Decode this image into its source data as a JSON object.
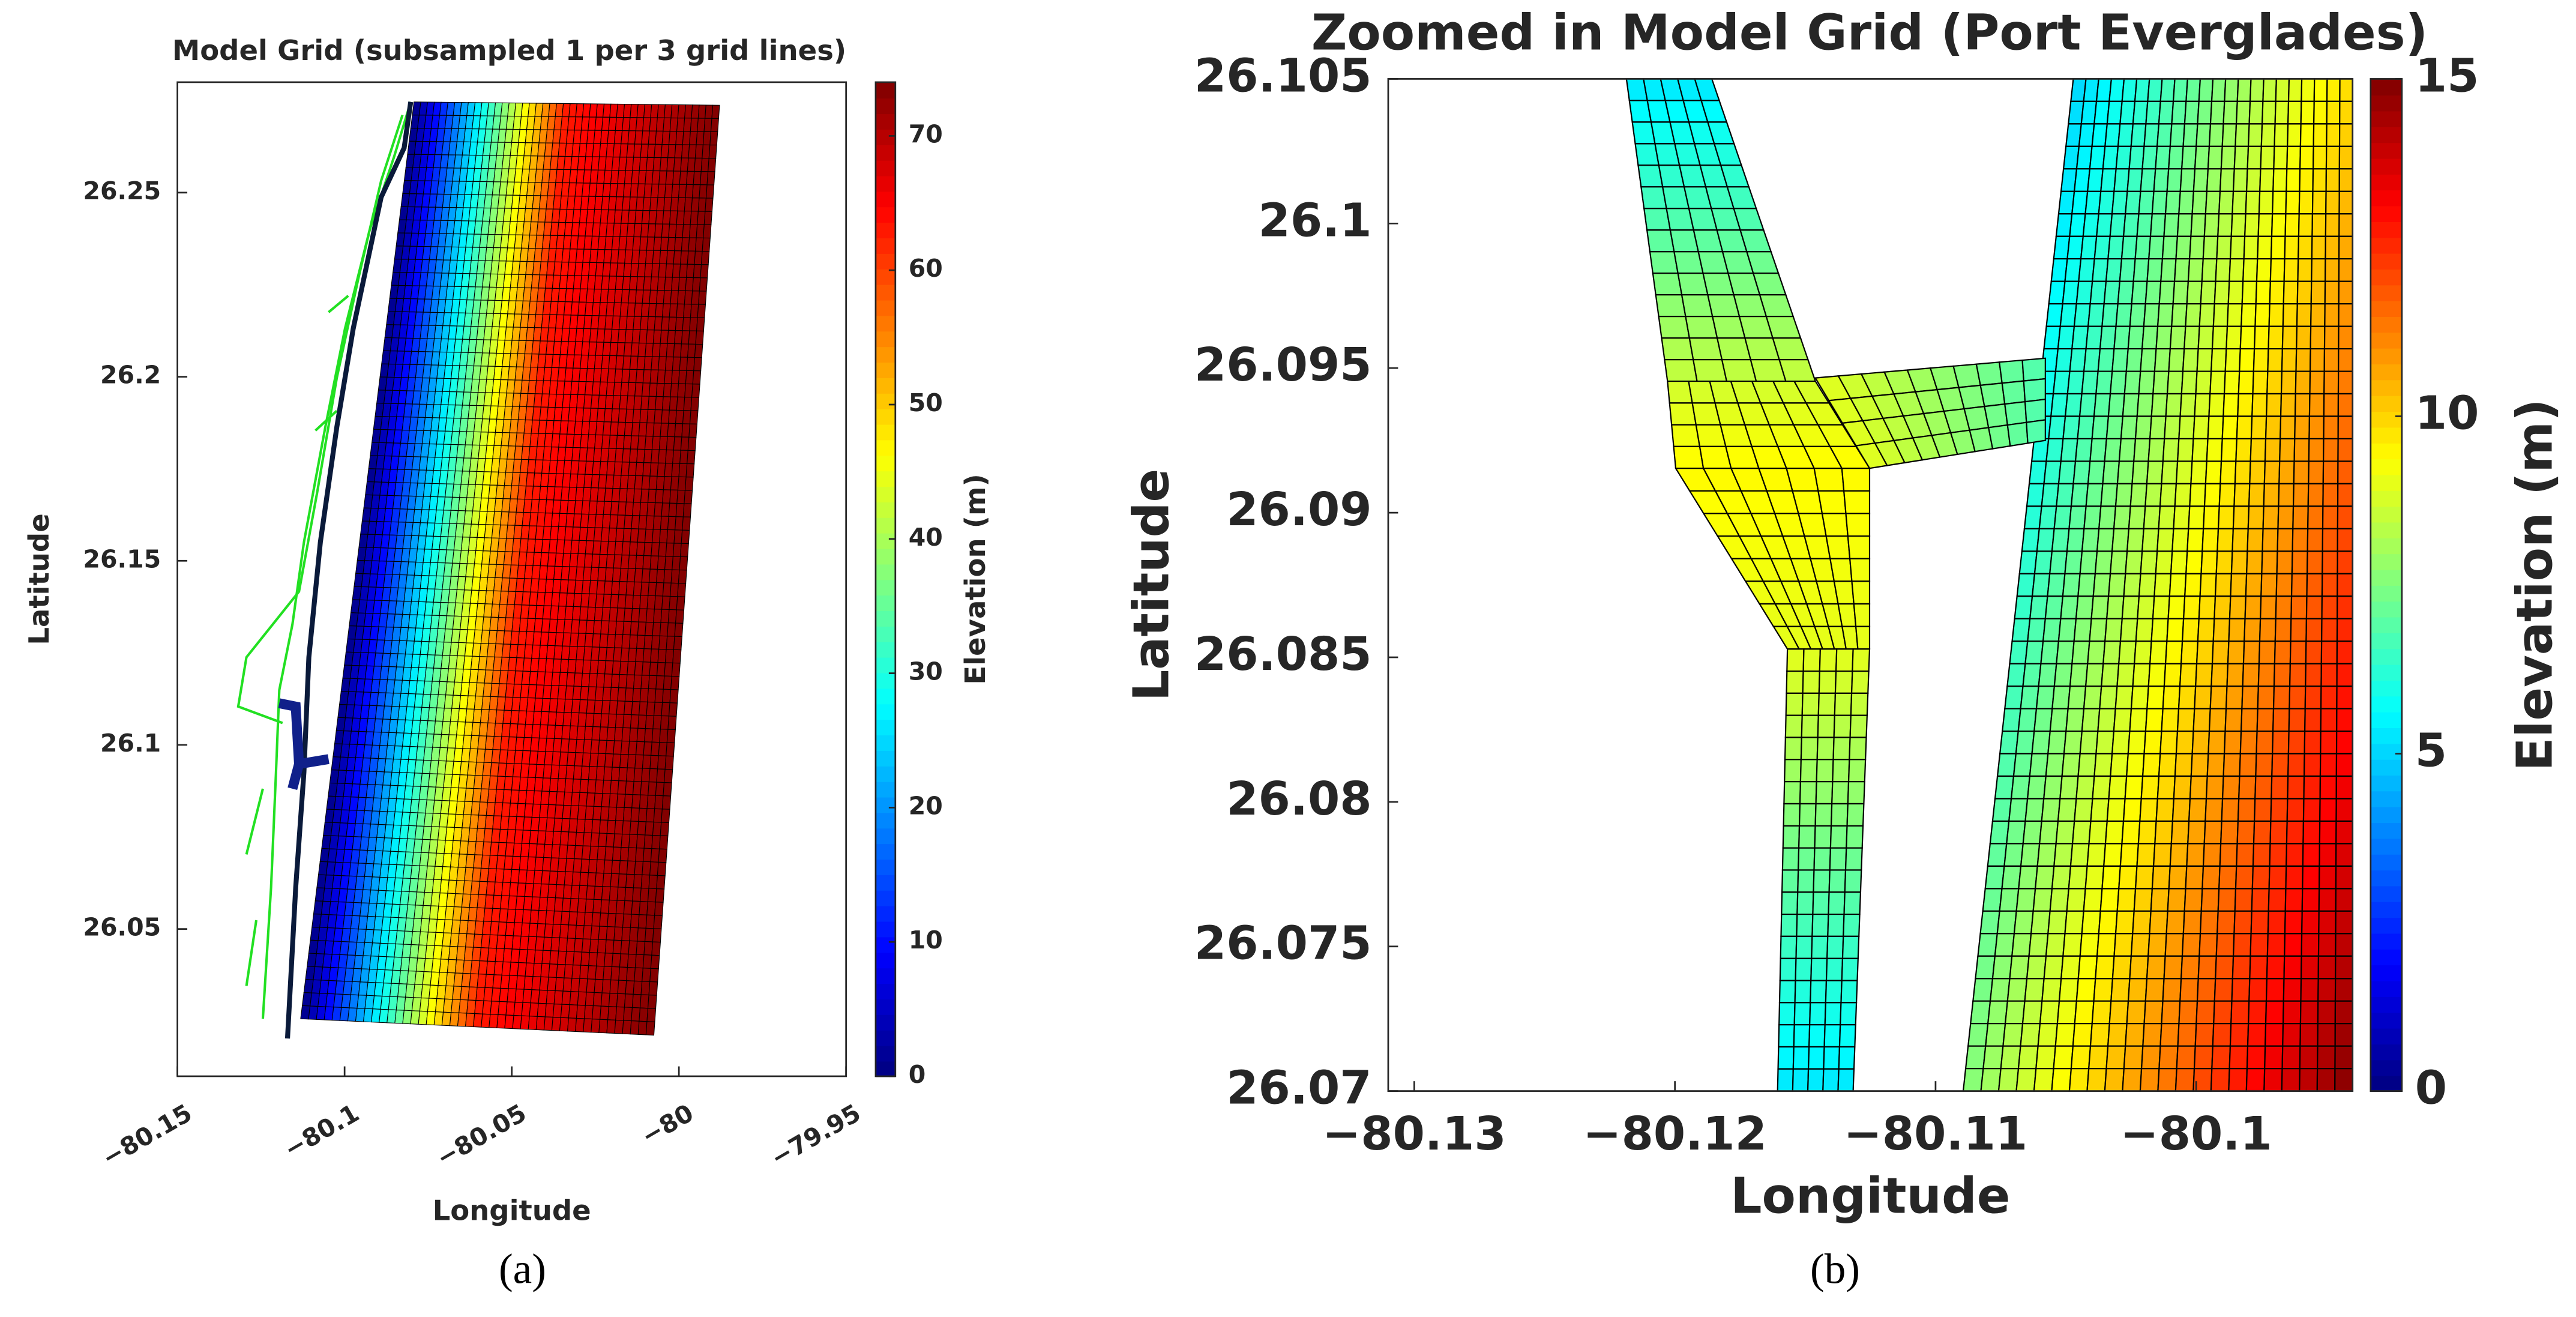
{
  "chart_data": [
    {
      "type": "mesh",
      "title": "Model Grid (subsampled 1 per 3 grid lines)",
      "panel_label": "(a)",
      "x_label": "Longitude",
      "y_label": "Latitude",
      "colorbar_label": "Elevation (m)",
      "xlim": [
        -80.15,
        -79.95
      ],
      "xticks": [
        {
          "value": -80.15,
          "label": "−80.15"
        },
        {
          "value": -80.1,
          "label": "−80.1"
        },
        {
          "value": -80.05,
          "label": "−80.05"
        },
        {
          "value": -80,
          "label": "−80"
        },
        {
          "value": -79.95,
          "label": "−79.95"
        }
      ],
      "ylim": [
        26.01,
        26.28
      ],
      "yticks": [
        26.05,
        26.1,
        26.15,
        26.2,
        26.25
      ],
      "clim": [
        0,
        74
      ],
      "cticks": [
        0,
        10,
        20,
        30,
        40,
        50,
        60,
        70
      ],
      "colormap": "jet"
    },
    {
      "type": "mesh",
      "title": "Zoomed in Model Grid (Port Everglades)",
      "panel_label": "(b)",
      "x_label": "Longitude",
      "y_label": "Latitude",
      "colorbar_label": "Elevation (m)",
      "xlim": [
        -80.131,
        -80.094
      ],
      "xticks": [
        {
          "value": -80.13,
          "label": "−80.13"
        },
        {
          "value": -80.12,
          "label": "−80.12"
        },
        {
          "value": -80.11,
          "label": "−80.11"
        },
        {
          "value": -80.1,
          "label": "−80.1"
        }
      ],
      "ylim": [
        26.07,
        26.105
      ],
      "yticks": [
        26.07,
        26.075,
        26.08,
        26.085,
        26.09,
        26.095,
        26.1,
        26.105
      ],
      "clim": [
        0,
        15
      ],
      "cticks": [
        0,
        5,
        10,
        15
      ],
      "colormap": "jet"
    }
  ]
}
